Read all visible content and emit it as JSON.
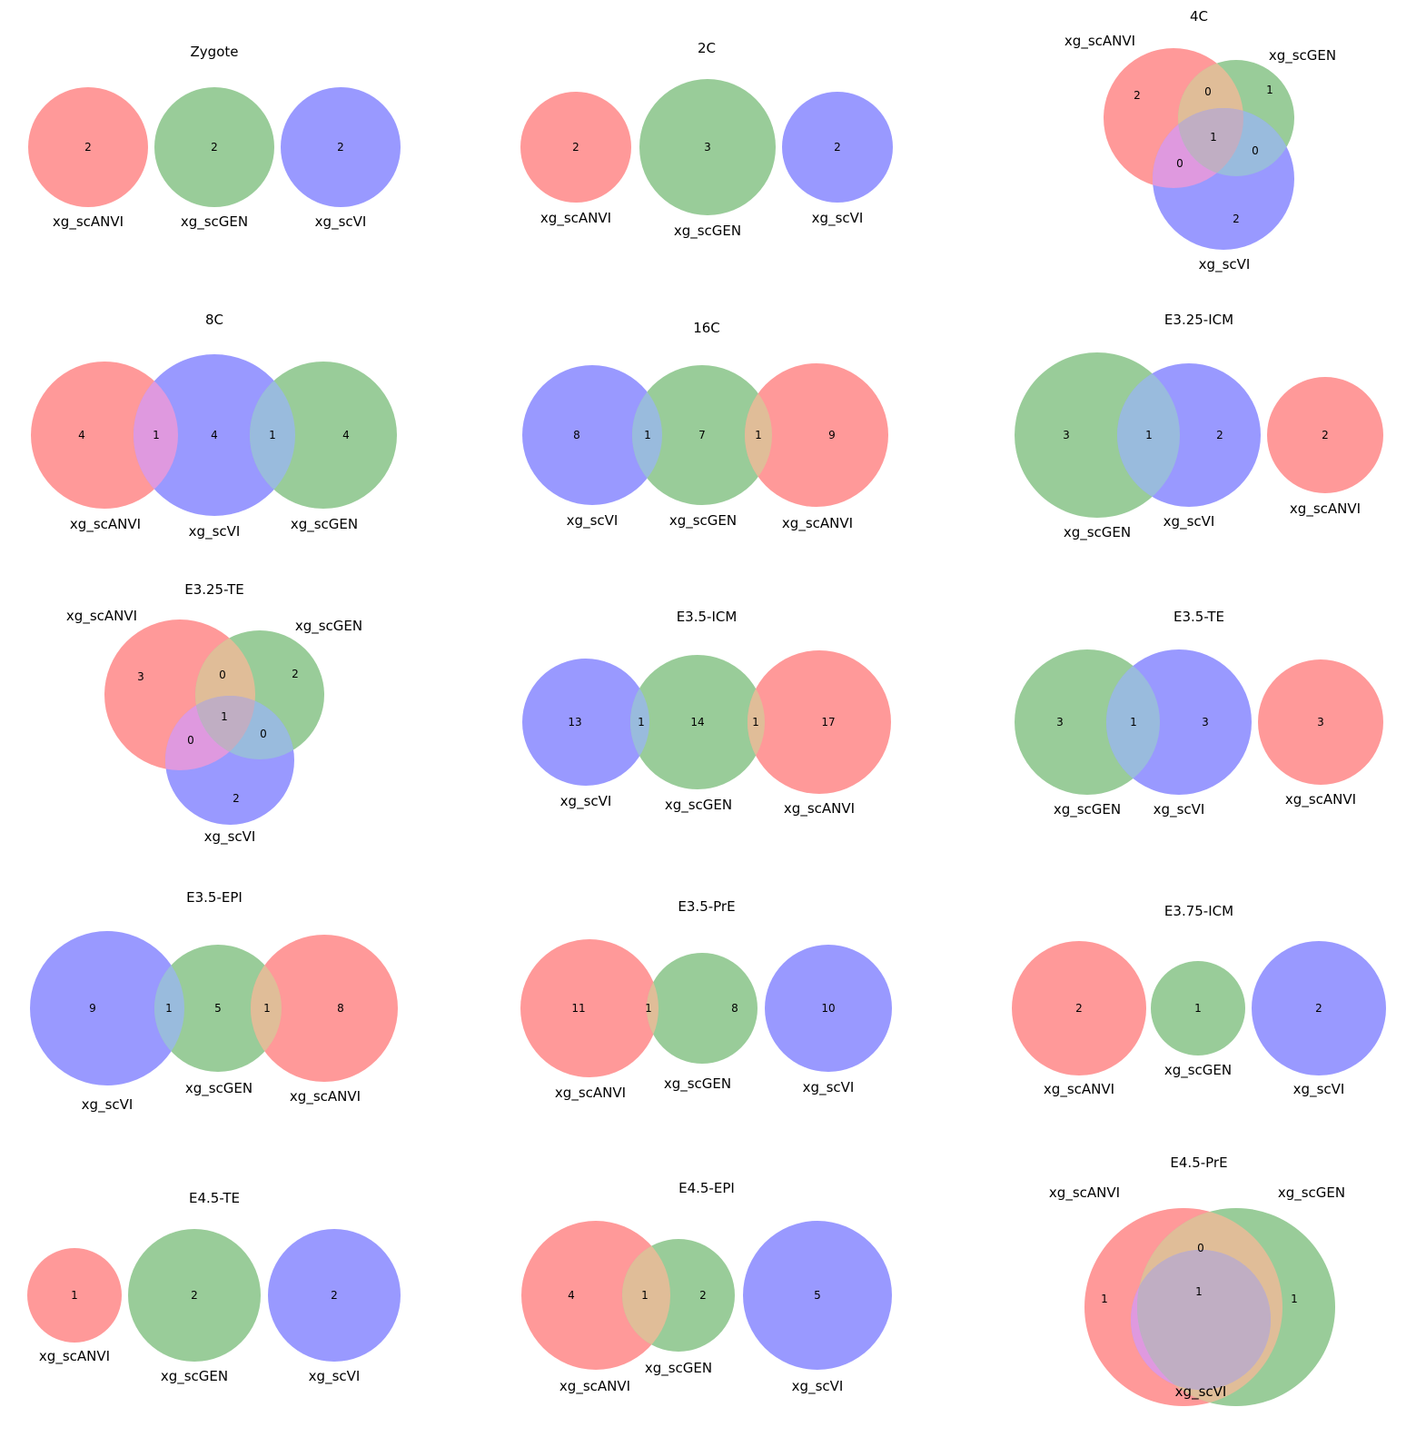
{
  "colors": {
    "xg_scANVI": "#ff9999",
    "xg_scGEN": "#99cc99",
    "xg_scVI": "#9999ff",
    "xg_scANVI&xg_scGEN": "#e0bd98",
    "xg_scANVI&xg_scVI": "#df99df",
    "xg_scGEN&xg_scVI": "#99bbdd",
    "xg_scANVI&xg_scGEN&xg_scVI": "#c0aec3"
  },
  "panels": [
    {
      "title": "Zygote",
      "sets": [
        "xg_scANVI",
        "xg_scGEN",
        "xg_scVI"
      ],
      "regions": [
        {
          "sets": "xg_scANVI",
          "value": "2"
        },
        {
          "sets": "xg_scGEN",
          "value": "2"
        },
        {
          "sets": "xg_scVI",
          "value": "2"
        }
      ]
    },
    {
      "title": "2C",
      "sets": [
        "xg_scANVI",
        "xg_scGEN",
        "xg_scVI"
      ],
      "regions": [
        {
          "sets": "xg_scANVI",
          "value": "2"
        },
        {
          "sets": "xg_scGEN",
          "value": "3"
        },
        {
          "sets": "xg_scVI",
          "value": "2"
        }
      ]
    },
    {
      "title": "4C",
      "sets": [
        "xg_scANVI",
        "xg_scGEN",
        "xg_scVI"
      ],
      "regions": [
        {
          "sets": "xg_scANVI",
          "value": "2"
        },
        {
          "sets": "xg_scANVI&xg_scGEN",
          "value": "0"
        },
        {
          "sets": "xg_scGEN",
          "value": "1"
        },
        {
          "sets": "xg_scANVI&xg_scGEN&xg_scVI",
          "value": "1"
        },
        {
          "sets": "xg_scANVI&xg_scVI",
          "value": "0"
        },
        {
          "sets": "xg_scGEN&xg_scVI",
          "value": "0"
        },
        {
          "sets": "xg_scVI",
          "value": "2"
        }
      ]
    },
    {
      "title": "8C",
      "sets": [
        "xg_scANVI",
        "xg_scVI",
        "xg_scGEN"
      ],
      "regions": [
        {
          "sets": "xg_scANVI",
          "value": "4"
        },
        {
          "sets": "xg_scANVI&xg_scVI",
          "value": "1"
        },
        {
          "sets": "xg_scVI",
          "value": "4"
        },
        {
          "sets": "xg_scGEN&xg_scVI",
          "value": "1"
        },
        {
          "sets": "xg_scGEN",
          "value": "4"
        }
      ]
    },
    {
      "title": "16C",
      "sets": [
        "xg_scVI",
        "xg_scGEN",
        "xg_scANVI"
      ],
      "regions": [
        {
          "sets": "xg_scVI",
          "value": "8"
        },
        {
          "sets": "xg_scGEN&xg_scVI",
          "value": "1"
        },
        {
          "sets": "xg_scGEN",
          "value": "7"
        },
        {
          "sets": "xg_scANVI&xg_scGEN",
          "value": "1"
        },
        {
          "sets": "xg_scANVI",
          "value": "9"
        }
      ]
    },
    {
      "title": "E3.25-ICM",
      "sets": [
        "xg_scGEN",
        "xg_scVI",
        "xg_scANVI"
      ],
      "regions": [
        {
          "sets": "xg_scGEN",
          "value": "3"
        },
        {
          "sets": "xg_scGEN&xg_scVI",
          "value": "1"
        },
        {
          "sets": "xg_scVI",
          "value": "2"
        },
        {
          "sets": "xg_scANVI",
          "value": "2"
        }
      ]
    },
    {
      "title": "E3.25-TE",
      "sets": [
        "xg_scANVI",
        "xg_scGEN",
        "xg_scVI"
      ],
      "regions": [
        {
          "sets": "xg_scANVI",
          "value": "3"
        },
        {
          "sets": "xg_scANVI&xg_scGEN",
          "value": "0"
        },
        {
          "sets": "xg_scGEN",
          "value": "2"
        },
        {
          "sets": "xg_scANVI&xg_scGEN&xg_scVI",
          "value": "1"
        },
        {
          "sets": "xg_scANVI&xg_scVI",
          "value": "0"
        },
        {
          "sets": "xg_scGEN&xg_scVI",
          "value": "0"
        },
        {
          "sets": "xg_scVI",
          "value": "2"
        }
      ]
    },
    {
      "title": "E3.5-ICM",
      "sets": [
        "xg_scVI",
        "xg_scGEN",
        "xg_scANVI"
      ],
      "regions": [
        {
          "sets": "xg_scVI",
          "value": "13"
        },
        {
          "sets": "xg_scGEN&xg_scVI",
          "value": "1"
        },
        {
          "sets": "xg_scGEN",
          "value": "14"
        },
        {
          "sets": "xg_scANVI&xg_scGEN",
          "value": "1"
        },
        {
          "sets": "xg_scANVI",
          "value": "17"
        }
      ]
    },
    {
      "title": "E3.5-TE",
      "sets": [
        "xg_scGEN",
        "xg_scVI",
        "xg_scANVI"
      ],
      "regions": [
        {
          "sets": "xg_scGEN",
          "value": "3"
        },
        {
          "sets": "xg_scGEN&xg_scVI",
          "value": "1"
        },
        {
          "sets": "xg_scVI",
          "value": "3"
        },
        {
          "sets": "xg_scANVI",
          "value": "3"
        }
      ]
    },
    {
      "title": "E3.5-EPI",
      "sets": [
        "xg_scVI",
        "xg_scGEN",
        "xg_scANVI"
      ],
      "regions": [
        {
          "sets": "xg_scVI",
          "value": "9"
        },
        {
          "sets": "xg_scGEN&xg_scVI",
          "value": "1"
        },
        {
          "sets": "xg_scGEN",
          "value": "5"
        },
        {
          "sets": "xg_scANVI&xg_scGEN",
          "value": "1"
        },
        {
          "sets": "xg_scANVI",
          "value": "8"
        }
      ]
    },
    {
      "title": "E3.5-PrE",
      "sets": [
        "xg_scANVI",
        "xg_scGEN",
        "xg_scVI"
      ],
      "regions": [
        {
          "sets": "xg_scANVI",
          "value": "11"
        },
        {
          "sets": "xg_scANVI&xg_scGEN",
          "value": "1"
        },
        {
          "sets": "xg_scGEN",
          "value": "8"
        },
        {
          "sets": "xg_scVI",
          "value": "10"
        }
      ]
    },
    {
      "title": "E3.75-ICM",
      "sets": [
        "xg_scANVI",
        "xg_scGEN",
        "xg_scVI"
      ],
      "regions": [
        {
          "sets": "xg_scANVI",
          "value": "2"
        },
        {
          "sets": "xg_scGEN",
          "value": "1"
        },
        {
          "sets": "xg_scVI",
          "value": "2"
        }
      ]
    },
    {
      "title": "E4.5-TE",
      "sets": [
        "xg_scANVI",
        "xg_scGEN",
        "xg_scVI"
      ],
      "regions": [
        {
          "sets": "xg_scANVI",
          "value": "1"
        },
        {
          "sets": "xg_scGEN",
          "value": "2"
        },
        {
          "sets": "xg_scVI",
          "value": "2"
        }
      ]
    },
    {
      "title": "E4.5-EPI",
      "sets": [
        "xg_scANVI",
        "xg_scGEN",
        "xg_scVI"
      ],
      "regions": [
        {
          "sets": "xg_scANVI",
          "value": "4"
        },
        {
          "sets": "xg_scANVI&xg_scGEN",
          "value": "1"
        },
        {
          "sets": "xg_scGEN",
          "value": "2"
        },
        {
          "sets": "xg_scVI",
          "value": "5"
        }
      ]
    },
    {
      "title": "E4.5-PrE",
      "sets": [
        "xg_scANVI",
        "xg_scGEN",
        "xg_scVI"
      ],
      "regions": [
        {
          "sets": "xg_scANVI&xg_scGEN",
          "value": "0"
        },
        {
          "sets": "xg_scANVI&xg_scGEN&xg_scVI",
          "value": "1"
        },
        {
          "sets": "xg_scANVI",
          "value": "1"
        },
        {
          "sets": "xg_scGEN",
          "value": "1"
        }
      ]
    }
  ]
}
